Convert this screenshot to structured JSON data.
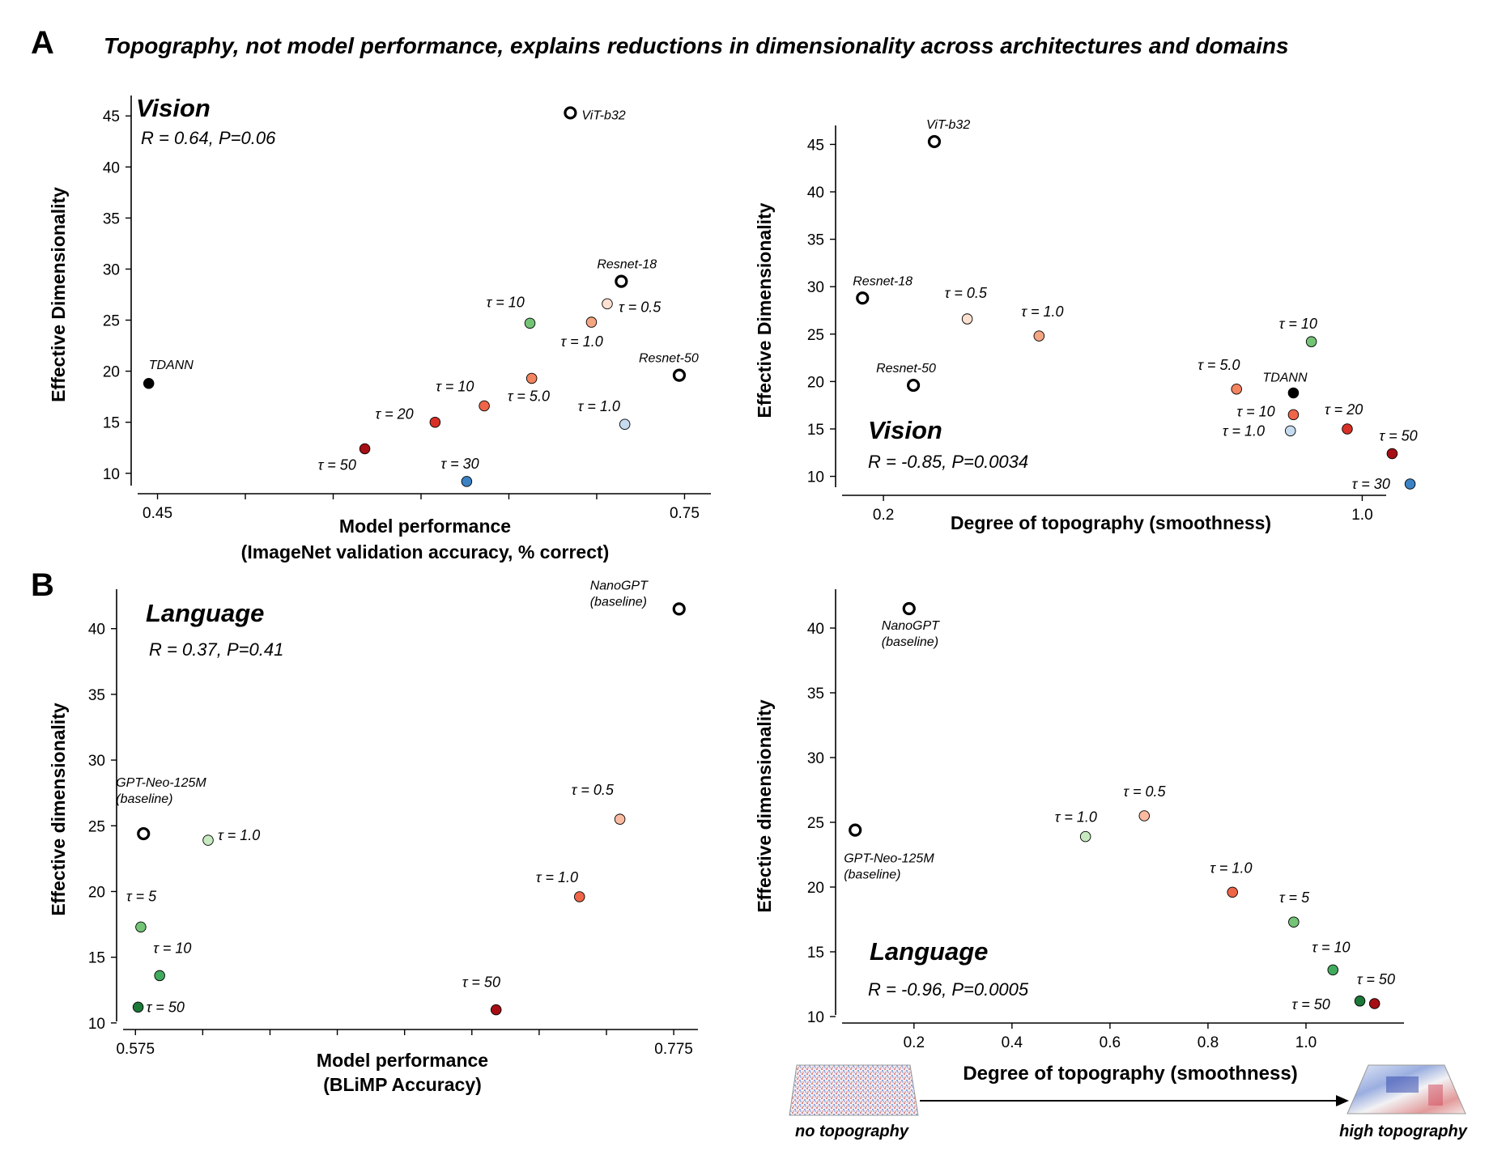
{
  "figure": {
    "panel_a": "A",
    "panel_b": "B",
    "title": "Topography, not model performance, explains reductions in dimensionality across architectures and domains"
  },
  "topography_arrow": {
    "left_label": "no topography",
    "right_label": "high topography"
  },
  "chart_data": [
    {
      "type": "scatter",
      "name_text": "Vision",
      "stats": "R = 0.64, P=0.06",
      "xlabel": [
        "Model performance",
        "(ImageNet validation accuracy, % correct)"
      ],
      "ylabel": "Effective Dimensionality",
      "xlim": [
        0.435,
        0.765
      ],
      "ylim": [
        8,
        47
      ],
      "xticks": [
        0.45,
        0.5,
        0.55,
        0.6,
        0.65,
        0.7,
        0.75
      ],
      "xticklabels": [
        "0.45",
        "",
        "",
        "",
        "",
        "",
        "0.75"
      ],
      "yticks": [
        10,
        15,
        20,
        25,
        30,
        35,
        40,
        45
      ],
      "points": [
        {
          "x": 0.445,
          "y": 18.8,
          "label": "TDANN",
          "color": "#000000",
          "open": false
        },
        {
          "x": 0.685,
          "y": 45.3,
          "label": "ViT-b32",
          "color": "#ffffff",
          "open": true
        },
        {
          "x": 0.714,
          "y": 28.8,
          "label": "Resnet-18",
          "color": "#ffffff",
          "open": true
        },
        {
          "x": 0.747,
          "y": 19.6,
          "label": "Resnet-50",
          "color": "#ffffff",
          "open": true
        },
        {
          "x": 0.706,
          "y": 26.6,
          "label": "τ = 0.5",
          "color": "#fde0d0",
          "open": false
        },
        {
          "x": 0.697,
          "y": 24.8,
          "label": "τ = 1.0",
          "color": "#f4a582",
          "open": false
        },
        {
          "x": 0.662,
          "y": 24.7,
          "label": "τ = 10",
          "color": "#74c476",
          "open": false
        },
        {
          "x": 0.663,
          "y": 19.3,
          "label": "τ = 5.0",
          "color": "#f4845f",
          "open": false
        },
        {
          "x": 0.636,
          "y": 16.6,
          "label": "τ = 10",
          "color": "#ef6548",
          "open": false
        },
        {
          "x": 0.608,
          "y": 15.0,
          "label": "τ = 20",
          "color": "#d73027",
          "open": false
        },
        {
          "x": 0.568,
          "y": 12.4,
          "label": "τ = 50",
          "color": "#a50f15",
          "open": false
        },
        {
          "x": 0.626,
          "y": 9.2,
          "label": "τ = 30",
          "color": "#3b82c4",
          "open": false
        },
        {
          "x": 0.716,
          "y": 14.8,
          "label": "τ = 1.0",
          "color": "#c6dbef",
          "open": false
        }
      ]
    },
    {
      "type": "scatter",
      "name_text": "Vision",
      "stats": "R = -0.85, P=0.0034",
      "xlabel": [
        "Degree of topography (smoothness)"
      ],
      "ylabel": "Effective Dimensionality",
      "xlim": [
        0.12,
        1.04
      ],
      "ylim": [
        8,
        47
      ],
      "xticks": [
        0.2,
        1.0
      ],
      "xticklabels": [
        "0.2",
        "1.0"
      ],
      "yticks": [
        10,
        15,
        20,
        25,
        30,
        35,
        40,
        45
      ],
      "points": [
        {
          "x": 0.285,
          "y": 45.3,
          "label": "ViT-b32",
          "color": "#ffffff",
          "open": true
        },
        {
          "x": 0.165,
          "y": 28.8,
          "label": "Resnet-18",
          "color": "#ffffff",
          "open": true
        },
        {
          "x": 0.25,
          "y": 19.6,
          "label": "Resnet-50",
          "color": "#ffffff",
          "open": true
        },
        {
          "x": 0.34,
          "y": 26.6,
          "label": "τ = 0.5",
          "color": "#fde0d0",
          "open": false
        },
        {
          "x": 0.46,
          "y": 24.8,
          "label": "τ = 1.0",
          "color": "#f4a582",
          "open": false
        },
        {
          "x": 0.915,
          "y": 24.2,
          "label": "τ = 10",
          "color": "#74c476",
          "open": false
        },
        {
          "x": 0.79,
          "y": 19.2,
          "label": "τ = 5.0",
          "color": "#f4845f",
          "open": false
        },
        {
          "x": 0.885,
          "y": 18.8,
          "label": "TDANN",
          "color": "#000000",
          "open": false
        },
        {
          "x": 0.885,
          "y": 16.5,
          "label": "τ = 10",
          "color": "#ef6548",
          "open": false
        },
        {
          "x": 0.88,
          "y": 14.8,
          "label": "τ = 1.0",
          "color": "#c6dbef",
          "open": false
        },
        {
          "x": 0.975,
          "y": 15.0,
          "label": "τ = 20",
          "color": "#d73027",
          "open": false
        },
        {
          "x": 1.05,
          "y": 12.4,
          "label": "τ = 50",
          "color": "#a50f15",
          "open": false
        },
        {
          "x": 1.08,
          "y": 9.2,
          "label": "τ = 30",
          "color": "#3b82c4",
          "open": false
        }
      ]
    },
    {
      "type": "scatter",
      "name_text": "Language",
      "stats": "R = 0.37, P=0.41",
      "xlabel": [
        "Model performance",
        "(BLiMP Accuracy)"
      ],
      "ylabel": "Effective dimensionality",
      "xlim": [
        0.568,
        0.784
      ],
      "ylim": [
        9.5,
        43
      ],
      "xticks": [
        0.575,
        0.6,
        0.625,
        0.65,
        0.675,
        0.7,
        0.725,
        0.75,
        0.775
      ],
      "xticklabels": [
        "0.575",
        "",
        "",
        "",
        "",
        "",
        "",
        "",
        "0.775"
      ],
      "yticks": [
        10,
        15,
        20,
        25,
        30,
        35,
        40
      ],
      "points": [
        {
          "x": 0.777,
          "y": 41.5,
          "label": "NanoGPT\n(baseline)",
          "color": "#ffffff",
          "open": true
        },
        {
          "x": 0.578,
          "y": 24.4,
          "label": "GPT-Neo-125M\n(baseline)",
          "color": "#ffffff",
          "open": true
        },
        {
          "x": 0.602,
          "y": 23.9,
          "label": "τ = 1.0",
          "color": "#c7e9c0",
          "open": false
        },
        {
          "x": 0.577,
          "y": 17.3,
          "label": "τ = 5",
          "color": "#74c476",
          "open": false
        },
        {
          "x": 0.584,
          "y": 13.6,
          "label": "τ = 10",
          "color": "#41ab5d",
          "open": false
        },
        {
          "x": 0.576,
          "y": 11.2,
          "label": "τ = 50",
          "color": "#1b7837",
          "open": false
        },
        {
          "x": 0.755,
          "y": 25.5,
          "label": "τ = 0.5",
          "color": "#fcbba1",
          "open": false
        },
        {
          "x": 0.74,
          "y": 19.6,
          "label": "τ = 1.0",
          "color": "#ef6548",
          "open": false
        },
        {
          "x": 0.709,
          "y": 11.0,
          "label": "τ = 50",
          "color": "#a50f15",
          "open": false
        }
      ]
    },
    {
      "type": "scatter",
      "name_text": "Language",
      "stats": "R = -0.96, P=0.0005",
      "xlabel": [
        "Degree of topography (smoothness)"
      ],
      "ylabel": "Effective dimensionality",
      "xlim": [
        0.04,
        1.2
      ],
      "ylim": [
        9.5,
        43
      ],
      "xticks": [
        0.2,
        0.4,
        0.6,
        0.8,
        1.0
      ],
      "xticklabels": [
        "0.2",
        "0.4",
        "0.6",
        "0.8",
        "1.0"
      ],
      "yticks": [
        10,
        15,
        20,
        25,
        30,
        35,
        40
      ],
      "points": [
        {
          "x": 0.19,
          "y": 41.5,
          "label": "NanoGPT\n(baseline)",
          "color": "#ffffff",
          "open": true
        },
        {
          "x": 0.08,
          "y": 24.4,
          "label": "GPT-Neo-125M\n(baseline)",
          "color": "#ffffff",
          "open": true
        },
        {
          "x": 0.55,
          "y": 23.9,
          "label": "τ = 1.0",
          "color": "#c7e9c0",
          "open": false
        },
        {
          "x": 0.67,
          "y": 25.5,
          "label": "τ = 0.5",
          "color": "#fcbba1",
          "open": false
        },
        {
          "x": 0.85,
          "y": 19.6,
          "label": "τ = 1.0",
          "color": "#ef6548",
          "open": false
        },
        {
          "x": 0.975,
          "y": 17.3,
          "label": "τ = 5",
          "color": "#74c476",
          "open": false
        },
        {
          "x": 1.055,
          "y": 13.6,
          "label": "τ = 10",
          "color": "#41ab5d",
          "open": false
        },
        {
          "x": 1.11,
          "y": 11.2,
          "label": "τ = 50",
          "color": "#1b7837",
          "open": false
        },
        {
          "x": 1.14,
          "y": 11.0,
          "label": "τ = 50",
          "color": "#a50f15",
          "open": false
        }
      ]
    }
  ]
}
